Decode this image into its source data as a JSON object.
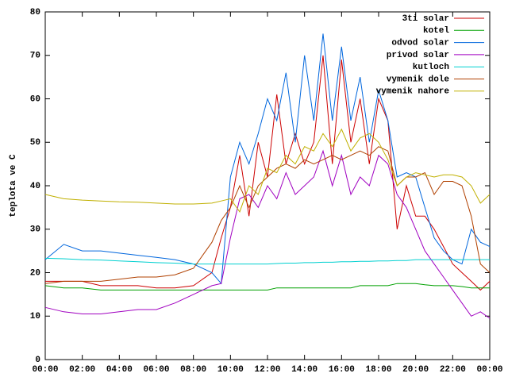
{
  "chart_data": {
    "type": "line",
    "ylabel": "teplota ve C",
    "x": [
      0,
      1,
      2,
      3,
      4,
      5,
      6,
      7,
      8,
      9,
      9.5,
      10,
      10.5,
      11,
      11.5,
      12,
      12.5,
      13,
      13.5,
      14,
      14.5,
      15,
      15.5,
      16,
      16.5,
      17,
      17.5,
      18,
      18.5,
      19,
      19.5,
      20,
      20.5,
      21,
      21.5,
      22,
      22.5,
      23,
      23.5,
      24
    ],
    "xlim": [
      0,
      24
    ],
    "xticks": [
      {
        "value": 0,
        "label": "00:00"
      },
      {
        "value": 2,
        "label": "02:00"
      },
      {
        "value": 4,
        "label": "04:00"
      },
      {
        "value": 6,
        "label": "06:00"
      },
      {
        "value": 8,
        "label": "08:00"
      },
      {
        "value": 10,
        "label": "10:00"
      },
      {
        "value": 12,
        "label": "12:00"
      },
      {
        "value": 14,
        "label": "14:00"
      },
      {
        "value": 16,
        "label": "16:00"
      },
      {
        "value": 18,
        "label": "18:00"
      },
      {
        "value": 20,
        "label": "20:00"
      },
      {
        "value": 22,
        "label": "22:00"
      },
      {
        "value": 24,
        "label": "00:00"
      }
    ],
    "ylim": [
      0,
      80
    ],
    "yticks": [
      0,
      10,
      20,
      30,
      40,
      50,
      60,
      70,
      80
    ],
    "grid": false,
    "legend": "top-right",
    "series": [
      {
        "name": "3ti solar",
        "color": "#cc0000",
        "values": [
          18,
          18,
          18,
          17,
          17,
          17,
          16.5,
          16.5,
          17,
          20,
          28,
          35,
          47,
          33,
          50,
          42,
          61,
          45,
          52,
          45,
          50,
          70,
          45,
          69,
          50,
          60,
          45,
          60,
          55,
          30,
          40,
          33,
          33,
          30,
          26,
          22,
          20,
          18,
          16,
          18
        ]
      },
      {
        "name": "kotel",
        "color": "#00a000",
        "values": [
          17,
          16.5,
          16.5,
          16,
          16,
          16,
          16,
          16,
          16,
          16,
          16,
          16,
          16,
          16,
          16,
          16,
          16.5,
          16.5,
          16.5,
          16.5,
          16.5,
          16.5,
          16.5,
          16.5,
          16.5,
          17,
          17,
          17,
          17,
          17.5,
          17.5,
          17.5,
          17.2,
          17,
          17,
          17,
          16.8,
          16.5,
          16.5,
          16.5
        ]
      },
      {
        "name": "odvod solar",
        "color": "#0066dd",
        "values": [
          23,
          26.5,
          25,
          25,
          24.5,
          24,
          23.5,
          23,
          22,
          20,
          17.5,
          42,
          50,
          45,
          52,
          60,
          55,
          66,
          50,
          70,
          55,
          75,
          55,
          72,
          55,
          65,
          50,
          62,
          55,
          42,
          43,
          42,
          35,
          28,
          25,
          23,
          22,
          30,
          27,
          26
        ]
      },
      {
        "name": "privod solar",
        "color": "#a000c0",
        "values": [
          12,
          11,
          10.5,
          10.5,
          11,
          11.5,
          11.5,
          13,
          15,
          17,
          17.5,
          28,
          37,
          38,
          35,
          40,
          37,
          43,
          38,
          40,
          42,
          48,
          40,
          47,
          38,
          42,
          40,
          47,
          45,
          38,
          35,
          30,
          25,
          22,
          19,
          16,
          13,
          10,
          11,
          9.5
        ]
      },
      {
        "name": "kutloch",
        "color": "#00d0d0",
        "values": [
          23.3,
          23.2,
          23,
          22.9,
          22.7,
          22.5,
          22.3,
          22.2,
          22,
          22,
          22,
          22,
          22,
          22,
          22,
          22,
          22.1,
          22.2,
          22.2,
          22.3,
          22.3,
          22.4,
          22.4,
          22.5,
          22.5,
          22.6,
          22.6,
          22.7,
          22.7,
          22.8,
          22.8,
          23,
          23,
          23,
          23,
          23,
          23,
          23,
          23,
          23
        ]
      },
      {
        "name": "vymenik dole",
        "color": "#b04000",
        "values": [
          17.5,
          18,
          18,
          18,
          18.5,
          19,
          19,
          19.5,
          21,
          27,
          32,
          35,
          40,
          35,
          40,
          42,
          44,
          45,
          44,
          46,
          45,
          46,
          47,
          46,
          47,
          48,
          47,
          49,
          48,
          40,
          42,
          42,
          43,
          38,
          41,
          41,
          40,
          33,
          22,
          20
        ]
      },
      {
        "name": "vymenik nahore",
        "color": "#c0b000",
        "values": [
          38,
          37,
          36.7,
          36.5,
          36.3,
          36.2,
          36,
          35.8,
          35.8,
          36,
          36.5,
          37,
          34,
          40,
          38,
          44,
          43,
          47,
          45,
          49,
          48,
          52,
          49,
          53,
          48,
          51,
          52,
          50,
          46,
          40,
          42,
          43,
          42.5,
          42,
          42.5,
          42.5,
          42,
          40,
          36,
          38
        ]
      }
    ]
  }
}
